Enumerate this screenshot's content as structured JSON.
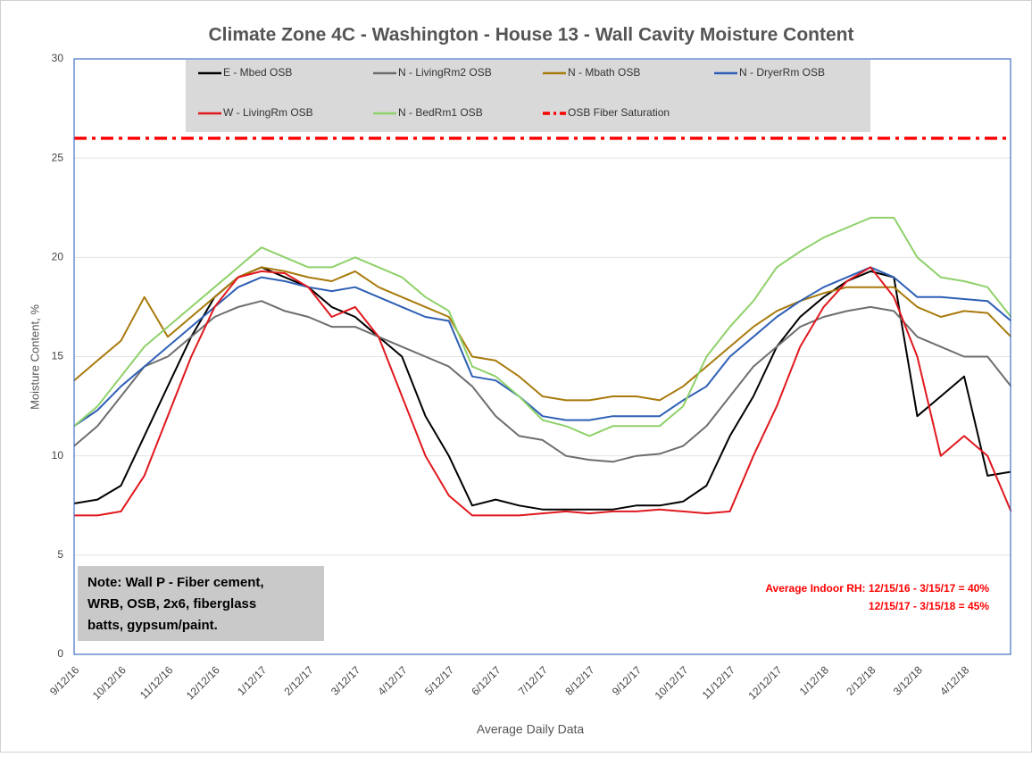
{
  "chart_data": {
    "type": "line",
    "title": "Climate Zone 4C - Washington - House 13 - Wall Cavity Moisture Content",
    "x_label": "Average Daily Data",
    "y_label": "Moisture Content, %",
    "categories": [
      "9/12/16",
      null,
      "10/12/16",
      null,
      "11/12/16",
      null,
      "12/12/16",
      null,
      "1/12/17",
      null,
      "2/12/17",
      null,
      "3/12/17",
      null,
      "4/12/17",
      null,
      "5/12/17",
      null,
      "6/12/17",
      null,
      "7/12/17",
      null,
      "8/12/17",
      null,
      "9/12/17",
      null,
      "10/12/17",
      null,
      "11/12/17",
      null,
      "12/12/17",
      null,
      "1/12/18",
      null,
      "2/12/18",
      null,
      "3/12/18",
      null,
      "4/12/18",
      null,
      null
    ],
    "ylim": [
      0,
      30
    ],
    "yticks": [
      0,
      5,
      10,
      15,
      20,
      25,
      30
    ],
    "grid": true,
    "series": [
      {
        "name": "E - Mbed OSB",
        "color": "#000000",
        "values": [
          7.6,
          7.8,
          8.5,
          11,
          13.5,
          16,
          18,
          19,
          19.5,
          19,
          18.5,
          17.5,
          17,
          16,
          15,
          12,
          10,
          7.5,
          7.8,
          7.5,
          7.3,
          7.3,
          7.3,
          7.3,
          7.5,
          7.5,
          7.7,
          8.5,
          11,
          13,
          15.5,
          17,
          18,
          18.8,
          19.3,
          19,
          12,
          13,
          14,
          9,
          9.2
        ]
      },
      {
        "name": "N - LivingRm2 OSB",
        "color": "#6e6e6e",
        "values": [
          10.5,
          11.5,
          13,
          14.5,
          15,
          16,
          17,
          17.5,
          17.8,
          17.3,
          17,
          16.5,
          16.5,
          16,
          15.5,
          15,
          14.5,
          13.5,
          12,
          11,
          10.8,
          10,
          9.8,
          9.7,
          10,
          10.1,
          10.5,
          11.5,
          13,
          14.5,
          15.5,
          16.5,
          17,
          17.3,
          17.5,
          17.3,
          16,
          15.5,
          15,
          15,
          13.5
        ]
      },
      {
        "name": "N - Mbath OSB",
        "color": "#a87a0c",
        "values": [
          13.8,
          14.8,
          15.8,
          18,
          16,
          17,
          18,
          19,
          19.5,
          19.3,
          19,
          18.8,
          19.3,
          18.5,
          18,
          17.5,
          17,
          15,
          14.8,
          14,
          13,
          12.8,
          12.8,
          13,
          13,
          12.8,
          13.5,
          14.5,
          15.5,
          16.5,
          17.3,
          17.8,
          18.2,
          18.5,
          18.5,
          18.5,
          17.5,
          17,
          17.3,
          17.2,
          16
        ]
      },
      {
        "name": "N - DryerRm OSB",
        "color": "#2e5fb5",
        "values": [
          11.5,
          12.3,
          13.5,
          14.5,
          15.5,
          16.5,
          17.5,
          18.5,
          19,
          18.8,
          18.5,
          18.3,
          18.5,
          18,
          17.5,
          17,
          16.8,
          14,
          13.8,
          13,
          12,
          11.8,
          11.8,
          12,
          12,
          12,
          12.8,
          13.5,
          15,
          16,
          17,
          17.8,
          18.5,
          19,
          19.5,
          19,
          18,
          18,
          17.9,
          17.8,
          16.8
        ]
      },
      {
        "name": "W - LivingRm OSB",
        "color": "#e0181e",
        "values": [
          7,
          7,
          7.2,
          9,
          12,
          15,
          17.5,
          19,
          19.3,
          19.2,
          18.5,
          17,
          17.5,
          16,
          13,
          10,
          8,
          7,
          7,
          7,
          7.1,
          7.2,
          7.1,
          7.2,
          7.2,
          7.3,
          7.2,
          7.1,
          7.2,
          10,
          12.5,
          15.5,
          17.5,
          18.8,
          19.5,
          18,
          15,
          10,
          11,
          10,
          7.2
        ]
      },
      {
        "name": "N - BedRm1 OSB",
        "color": "#8fd16a",
        "values": [
          11.5,
          12.5,
          14,
          15.5,
          16.5,
          17.5,
          18.5,
          19.5,
          20.5,
          20,
          19.5,
          19.5,
          20,
          19.5,
          19,
          18,
          17.3,
          14.5,
          14,
          13,
          11.8,
          11.5,
          11,
          11.5,
          11.5,
          11.5,
          12.5,
          15,
          16.5,
          17.8,
          19.5,
          20.3,
          21,
          21.5,
          22,
          22,
          20,
          19,
          18.8,
          18.5,
          17
        ]
      },
      {
        "name": "OSB Fiber Saturation",
        "color": "#ff0000",
        "dash": true,
        "values": [
          26,
          26,
          26,
          26,
          26,
          26,
          26,
          26,
          26,
          26,
          26,
          26,
          26,
          26,
          26,
          26,
          26,
          26,
          26,
          26,
          26,
          26,
          26,
          26,
          26,
          26,
          26,
          26,
          26,
          26,
          26,
          26,
          26,
          26,
          26,
          26,
          26,
          26,
          26,
          26,
          26
        ]
      }
    ],
    "note": [
      "Note: Wall P - Fiber cement,",
      "WRB, OSB, 2x6, fiberglass",
      "batts, gypsum/paint."
    ],
    "annotation": [
      "Average Indoor RH: 12/15/16 - 3/15/17 = 40%",
      "12/15/17 - 3/15/18 = 45%"
    ]
  }
}
